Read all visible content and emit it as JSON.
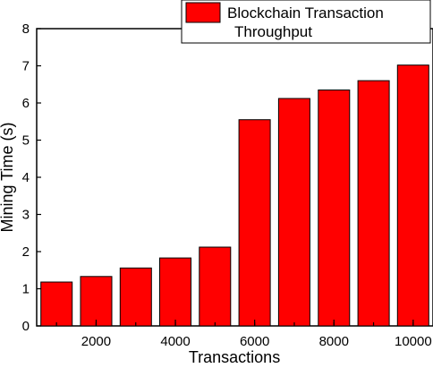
{
  "chart_data": {
    "type": "bar",
    "title": "",
    "xlabel": "Transactions",
    "ylabel": "Mining Time (s)",
    "categories": [
      1000,
      2000,
      3000,
      4000,
      5000,
      6000,
      7000,
      8000,
      9000,
      10000
    ],
    "x_tick_labels": [
      {
        "value": 2000,
        "label": "2000"
      },
      {
        "value": 4000,
        "label": "4000"
      },
      {
        "value": 6000,
        "label": "6000"
      },
      {
        "value": 8000,
        "label": "8000"
      },
      {
        "value": 10000,
        "label": "10000"
      }
    ],
    "xlim": [
      500,
      10500
    ],
    "ylim": [
      0,
      8
    ],
    "y_ticks": [
      0,
      1,
      2,
      3,
      4,
      5,
      6,
      7,
      8
    ],
    "series": [
      {
        "name": "Blockchain Transaction Throughput",
        "color": "#ff0000",
        "values": [
          1.18,
          1.33,
          1.56,
          1.83,
          2.12,
          5.55,
          6.12,
          6.35,
          6.6,
          7.02
        ]
      }
    ],
    "legend": {
      "position": "top-right",
      "lines": [
        "Blockchain Transaction",
        "Throughput"
      ]
    },
    "grid": false
  }
}
